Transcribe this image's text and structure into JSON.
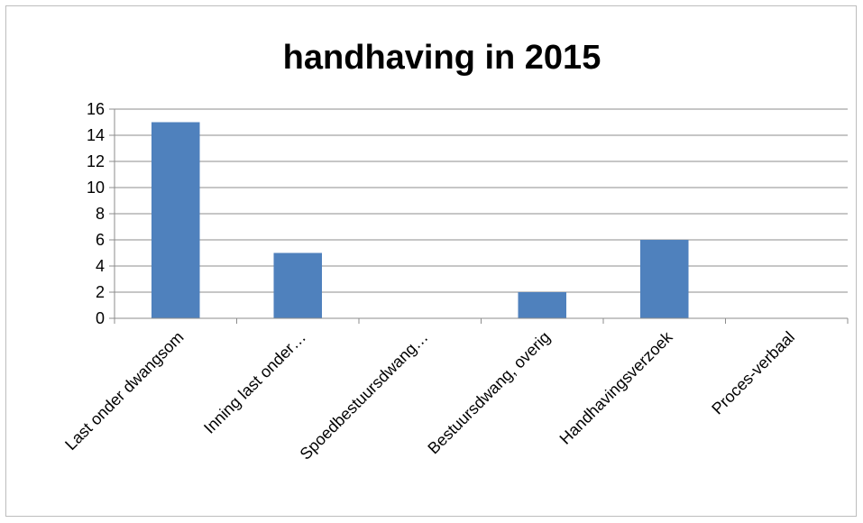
{
  "chart_data": {
    "type": "bar",
    "title": "handhaving in 2015",
    "categories": [
      "Last onder dwangsom",
      "Inning last onder…",
      "Spoedbestuursdwang…",
      "Bestuursdwang, overig",
      "Handhavingsverzoek",
      "Proces-verbaal"
    ],
    "values": [
      15,
      5,
      0,
      2,
      6,
      0
    ],
    "ylim": [
      0,
      16
    ],
    "yticks": [
      0,
      2,
      4,
      6,
      8,
      10,
      12,
      14,
      16
    ],
    "grid": true,
    "legend": "none",
    "bar_color": "#4f81bd"
  }
}
